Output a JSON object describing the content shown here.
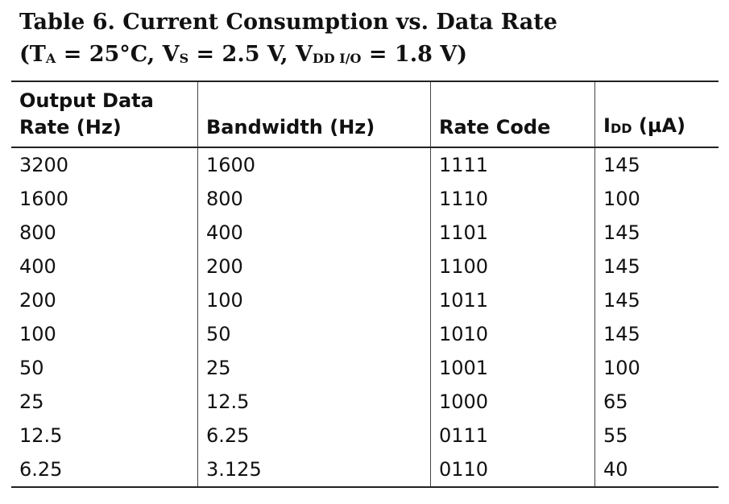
{
  "title": {
    "line1": "Table 6. Current Consumption vs. Data Rate",
    "line2": {
      "open": "(T",
      "ta_sub": "A",
      "mid1": " = 25°C, V",
      "vs_sub": "S",
      "mid2": " = 2.5 V, V",
      "vdd_sub": "DD I/O",
      "end": " = 1.8 V)"
    }
  },
  "table": {
    "headers": {
      "col1_line1": "Output Data",
      "col1_line2": "Rate (Hz)",
      "col2": "Bandwidth (Hz)",
      "col3": "Rate Code",
      "col4_main": "I",
      "col4_sub": "DD",
      "col4_unit": " (µA)"
    },
    "rows": [
      [
        "3200",
        "1600",
        "1111",
        "145"
      ],
      [
        "1600",
        "800",
        "1110",
        "100"
      ],
      [
        "800",
        "400",
        "1101",
        "145"
      ],
      [
        "400",
        "200",
        "1100",
        "145"
      ],
      [
        "200",
        "100",
        "1011",
        "145"
      ],
      [
        "100",
        "50",
        "1010",
        "145"
      ],
      [
        "50",
        "25",
        "1001",
        "100"
      ],
      [
        "25",
        "12.5",
        "1000",
        "65"
      ],
      [
        "12.5",
        "6.25",
        "0111",
        "55"
      ],
      [
        "6.25",
        "3.125",
        "0110",
        "40"
      ]
    ]
  }
}
